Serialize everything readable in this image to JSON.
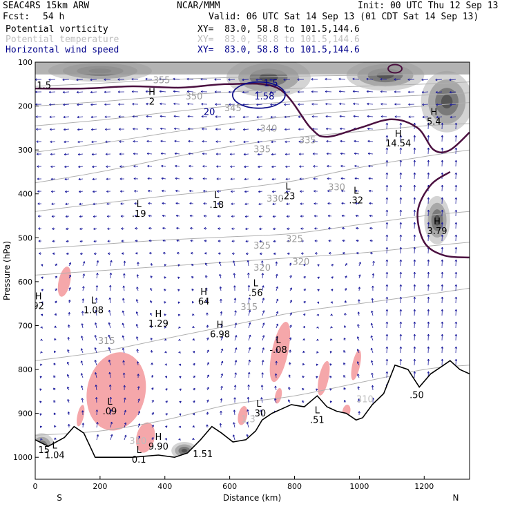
{
  "header": {
    "model": "SEAC4RS 15km ARW",
    "source": "NCAR/MMM",
    "init": "Init: 00 UTC Thu 12 Sep 13",
    "fcst_label": "Fcst:",
    "fcst_value": "54 h",
    "valid": "Valid: 06 UTC Sat 14 Sep 13 (01 CDT Sat 14 Sep 13)"
  },
  "fields": [
    {
      "name": "Potential vorticity",
      "xy": "XY=  83.0, 58.8 to 101.5,144.6",
      "color": "#000000"
    },
    {
      "name": "Potential temperature",
      "xy": "XY=  83.0, 58.8 to 101.5,144.6",
      "color": "#bdbdbd"
    },
    {
      "name": "Horizontal wind speed",
      "xy": "XY=  83.0, 58.8 to 101.5,144.6",
      "color": "#00008b"
    }
  ],
  "chart_data": {
    "type": "cross-section",
    "xlabel": "Distance (km)",
    "ylabel": "Pressure (hPa)",
    "xlim": [
      0,
      1340
    ],
    "ylim": [
      1050,
      100
    ],
    "x_ticks": [
      0,
      200,
      400,
      600,
      800,
      1000,
      1200
    ],
    "y_ticks": [
      100,
      200,
      300,
      400,
      500,
      600,
      700,
      800,
      900,
      1000
    ],
    "x_endpoints": {
      "left": "S",
      "right": "N"
    },
    "terrain": [
      [
        0,
        960
      ],
      [
        40,
        975
      ],
      [
        90,
        955
      ],
      [
        120,
        930
      ],
      [
        150,
        945
      ],
      [
        185,
        1000
      ],
      [
        300,
        1000
      ],
      [
        380,
        995
      ],
      [
        430,
        1000
      ],
      [
        470,
        990
      ],
      [
        510,
        960
      ],
      [
        545,
        930
      ],
      [
        575,
        945
      ],
      [
        610,
        965
      ],
      [
        650,
        960
      ],
      [
        680,
        940
      ],
      [
        700,
        915
      ],
      [
        730,
        900
      ],
      [
        760,
        890
      ],
      [
        790,
        880
      ],
      [
        830,
        885
      ],
      [
        870,
        860
      ],
      [
        900,
        885
      ],
      [
        930,
        895
      ],
      [
        960,
        900
      ],
      [
        990,
        915
      ],
      [
        1010,
        910
      ],
      [
        1040,
        880
      ],
      [
        1075,
        855
      ],
      [
        1110,
        790
      ],
      [
        1150,
        800
      ],
      [
        1185,
        840
      ],
      [
        1220,
        810
      ],
      [
        1250,
        795
      ],
      [
        1280,
        780
      ],
      [
        1310,
        800
      ],
      [
        1340,
        810
      ]
    ],
    "theta_contours": [
      {
        "value": 355,
        "points": [
          [
            0,
            155
          ],
          [
            200,
            148
          ],
          [
            400,
            140
          ],
          [
            600,
            135
          ],
          [
            800,
            132
          ],
          [
            1000,
            130
          ],
          [
            1200,
            128
          ],
          [
            1340,
            125
          ]
        ]
      },
      {
        "value": 350,
        "points": [
          [
            0,
            200
          ],
          [
            200,
            190
          ],
          [
            400,
            178
          ],
          [
            600,
            168
          ],
          [
            800,
            160
          ],
          [
            1000,
            155
          ],
          [
            1200,
            150
          ],
          [
            1340,
            145
          ]
        ]
      },
      {
        "value": 345,
        "points": [
          [
            0,
            245
          ],
          [
            200,
            232
          ],
          [
            400,
            215
          ],
          [
            600,
            200
          ],
          [
            800,
            190
          ],
          [
            1000,
            182
          ],
          [
            1200,
            175
          ],
          [
            1340,
            170
          ]
        ]
      },
      {
        "value": 340,
        "points": [
          [
            0,
            305
          ],
          [
            200,
            285
          ],
          [
            400,
            262
          ],
          [
            600,
            240
          ],
          [
            800,
            222
          ],
          [
            1000,
            210
          ],
          [
            1200,
            200
          ],
          [
            1340,
            192
          ]
        ]
      },
      {
        "value": 335,
        "points": [
          [
            0,
            375
          ],
          [
            200,
            350
          ],
          [
            400,
            320
          ],
          [
            600,
            292
          ],
          [
            800,
            272
          ],
          [
            1000,
            258
          ],
          [
            1200,
            245
          ],
          [
            1340,
            240
          ]
        ]
      },
      {
        "value": 330,
        "points": [
          [
            0,
            440
          ],
          [
            200,
            422
          ],
          [
            400,
            405
          ],
          [
            600,
            390
          ],
          [
            800,
            370
          ],
          [
            1000,
            340
          ],
          [
            1200,
            315
          ],
          [
            1340,
            300
          ]
        ]
      },
      {
        "value": 325,
        "points": [
          [
            0,
            525
          ],
          [
            200,
            515
          ],
          [
            400,
            505
          ],
          [
            600,
            498
          ],
          [
            800,
            490
          ],
          [
            1000,
            470
          ],
          [
            1200,
            450
          ],
          [
            1340,
            440
          ]
        ]
      },
      {
        "value": 320,
        "points": [
          [
            0,
            585
          ],
          [
            200,
            575
          ],
          [
            400,
            565
          ],
          [
            600,
            555
          ],
          [
            800,
            545
          ],
          [
            1000,
            535
          ],
          [
            1200,
            520
          ],
          [
            1340,
            510
          ]
        ]
      },
      {
        "value": 315,
        "points": [
          [
            0,
            780
          ],
          [
            200,
            760
          ],
          [
            400,
            730
          ],
          [
            600,
            700
          ],
          [
            800,
            670
          ],
          [
            1000,
            650
          ],
          [
            1200,
            630
          ],
          [
            1340,
            615
          ]
        ]
      },
      {
        "value": 310,
        "points": [
          [
            0,
            950
          ],
          [
            200,
            940
          ],
          [
            400,
            915
          ],
          [
            600,
            880
          ],
          [
            800,
            860
          ],
          [
            1000,
            830
          ],
          [
            1200,
            800
          ],
          [
            1340,
            790
          ]
        ]
      }
    ],
    "pv_contours": [
      {
        "value": 1.5,
        "points": [
          [
            0,
            160
          ],
          [
            150,
            160
          ],
          [
            300,
            155
          ],
          [
            450,
            158
          ],
          [
            600,
            150
          ],
          [
            750,
            160
          ],
          [
            850,
            250
          ],
          [
            900,
            270
          ],
          [
            1000,
            250
          ],
          [
            1100,
            230
          ],
          [
            1180,
            250
          ],
          [
            1230,
            300
          ],
          [
            1280,
            300
          ],
          [
            1340,
            260
          ]
        ]
      },
      {
        "value": 1.5,
        "points": [
          [
            1280,
            350
          ],
          [
            1220,
            380
          ],
          [
            1180,
            440
          ],
          [
            1200,
            510
          ],
          [
            1260,
            540
          ],
          [
            1340,
            545
          ]
        ]
      }
    ],
    "highs": [
      {
        "x": 360,
        "p": 175,
        "value": "2"
      },
      {
        "x": 1230,
        "p": 220,
        "value": "5.4"
      },
      {
        "x": 1120,
        "p": 270,
        "value": "14.54"
      },
      {
        "x": 1240,
        "p": 470,
        "value": "3.79"
      },
      {
        "x": 520,
        "p": 630,
        "value": "64"
      },
      {
        "x": 570,
        "p": 705,
        "value": "6.98"
      },
      {
        "x": 10,
        "p": 640,
        "value": "92"
      },
      {
        "x": 380,
        "p": 680,
        "value": "1.29"
      },
      {
        "x": 380,
        "p": 960,
        "value": "9.90"
      }
    ],
    "lows": [
      {
        "x": 320,
        "p": 430,
        "value": ".19"
      },
      {
        "x": 560,
        "p": 410,
        "value": ".18"
      },
      {
        "x": 780,
        "p": 390,
        "value": ".23"
      },
      {
        "x": 990,
        "p": 400,
        "value": ".32"
      },
      {
        "x": 680,
        "p": 610,
        "value": ".56"
      },
      {
        "x": 180,
        "p": 650,
        "value": "1.08"
      },
      {
        "x": 750,
        "p": 740,
        "value": "-.08"
      },
      {
        "x": 230,
        "p": 880,
        "value": ".09"
      },
      {
        "x": 690,
        "p": 885,
        "value": ".30"
      },
      {
        "x": 870,
        "p": 900,
        "value": ".51"
      },
      {
        "x": 320,
        "p": 990,
        "value": "0.1"
      },
      {
        "x": 60,
        "p": 980,
        "value": "1.04"
      }
    ],
    "other_labels": [
      {
        "x": 10,
        "p": 160,
        "value": "1.5",
        "color": "#000000"
      },
      {
        "x": 520,
        "p": 220,
        "value": "20",
        "color": "#00008b"
      },
      {
        "x": 690,
        "p": 185,
        "value": "1.58",
        "color": "#00008b"
      },
      {
        "x": 710,
        "p": 155,
        "value": "1.5",
        "color": "#00008b"
      },
      {
        "x": 1160,
        "p": 865,
        "value": ".50",
        "color": "#000000"
      },
      {
        "x": 500,
        "p": 1000,
        "value": "1.51",
        "color": "#000000"
      },
      {
        "x": 10,
        "p": 990,
        "value": "15",
        "color": "#000000"
      },
      {
        "x": 1000,
        "p": 875,
        "value": "310",
        "color": "#bdbdbd"
      },
      {
        "x": 300,
        "p": 970,
        "value": "310",
        "color": "#bdbdbd"
      },
      {
        "x": 640,
        "p": 920,
        "value": "1.3",
        "color": "#bdbdbd"
      }
    ],
    "grey_label_positions": [
      {
        "value": 355,
        "x": 390,
        "p": 148
      },
      {
        "value": 350,
        "x": 490,
        "p": 185
      },
      {
        "value": 345,
        "x": 610,
        "p": 212
      },
      {
        "value": 340,
        "x": 720,
        "p": 258
      },
      {
        "value": 335,
        "x": 700,
        "p": 305
      },
      {
        "value": 335,
        "x": 840,
        "p": 285
      },
      {
        "value": 330,
        "x": 740,
        "p": 418
      },
      {
        "value": 330,
        "x": 930,
        "p": 392
      },
      {
        "value": 325,
        "x": 700,
        "p": 525
      },
      {
        "value": 325,
        "x": 800,
        "p": 510
      },
      {
        "value": 320,
        "x": 700,
        "p": 575
      },
      {
        "value": 320,
        "x": 820,
        "p": 562
      },
      {
        "value": 315,
        "x": 660,
        "p": 665
      },
      {
        "value": 315,
        "x": 220,
        "p": 742
      }
    ],
    "pink_blobs": [
      {
        "x": 250,
        "p": 850,
        "rx": 90,
        "rp": 90
      },
      {
        "x": 90,
        "p": 600,
        "rx": 18,
        "rp": 35
      },
      {
        "x": 755,
        "p": 760,
        "rx": 25,
        "rp": 70
      },
      {
        "x": 890,
        "p": 820,
        "rx": 15,
        "rp": 40
      },
      {
        "x": 990,
        "p": 790,
        "rx": 12,
        "rp": 35
      },
      {
        "x": 640,
        "p": 905,
        "rx": 14,
        "rp": 22
      },
      {
        "x": 140,
        "p": 905,
        "rx": 10,
        "rp": 25
      },
      {
        "x": 340,
        "p": 955,
        "rx": 28,
        "rp": 35
      },
      {
        "x": 750,
        "p": 860,
        "rx": 10,
        "rp": 18
      },
      {
        "x": 960,
        "p": 895,
        "rx": 12,
        "rp": 15
      }
    ],
    "grey_blobs": [
      {
        "x": 200,
        "p": 120,
        "rx": 160,
        "rp": 25
      },
      {
        "x": 720,
        "p": 135,
        "rx": 130,
        "rp": 45
      },
      {
        "x": 1080,
        "p": 130,
        "rx": 120,
        "rp": 35
      },
      {
        "x": 1270,
        "p": 190,
        "rx": 80,
        "rp": 70
      },
      {
        "x": 1240,
        "p": 460,
        "rx": 40,
        "rp": 55
      },
      {
        "x": 20,
        "p": 975,
        "rx": 40,
        "rp": 30
      },
      {
        "x": 460,
        "p": 985,
        "rx": 40,
        "rp": 20
      }
    ]
  }
}
